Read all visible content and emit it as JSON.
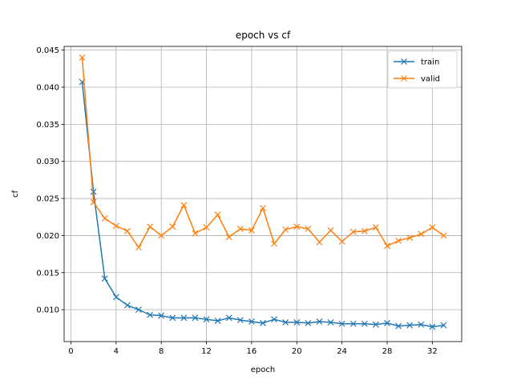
{
  "chart_data": {
    "type": "line",
    "title": "epoch vs cf",
    "xlabel": "epoch",
    "ylabel": "cf",
    "xlim": [
      -0.6,
      34.6
    ],
    "ylim": [
      0.0057,
      0.0455
    ],
    "xticks": [
      0,
      4,
      8,
      12,
      16,
      20,
      24,
      28,
      32
    ],
    "yticks": [
      0.01,
      0.015,
      0.02,
      0.025,
      0.03,
      0.035,
      0.04,
      0.045
    ],
    "grid": true,
    "legend_position": "top-right",
    "marker": "x",
    "x": [
      1,
      2,
      3,
      4,
      5,
      6,
      7,
      8,
      9,
      10,
      11,
      12,
      13,
      14,
      15,
      16,
      17,
      18,
      19,
      20,
      21,
      22,
      23,
      24,
      25,
      26,
      27,
      28,
      29,
      30,
      31,
      32,
      33
    ],
    "series": [
      {
        "name": "train",
        "color": "#1f77b4",
        "values": [
          0.0407,
          0.0259,
          0.0142,
          0.0117,
          0.0106,
          0.01,
          0.0093,
          0.0092,
          0.0089,
          0.0089,
          0.0089,
          0.0087,
          0.0085,
          0.0089,
          0.0086,
          0.0084,
          0.0082,
          0.0087,
          0.0083,
          0.0083,
          0.0082,
          0.0084,
          0.0083,
          0.0081,
          0.0081,
          0.0081,
          0.008,
          0.0082,
          0.0078,
          0.0079,
          0.008,
          0.0077,
          0.0079
        ]
      },
      {
        "name": "valid",
        "color": "#ff7f0e",
        "values": [
          0.044,
          0.0245,
          0.0223,
          0.0213,
          0.0206,
          0.0184,
          0.0212,
          0.02,
          0.0212,
          0.0241,
          0.0203,
          0.0211,
          0.0228,
          0.0198,
          0.0209,
          0.0207,
          0.0237,
          0.0189,
          0.0208,
          0.0212,
          0.0209,
          0.0191,
          0.0207,
          0.0192,
          0.0205,
          0.0206,
          0.0211,
          0.0186,
          0.0193,
          0.0197,
          0.0202,
          0.0211,
          0.02
        ]
      }
    ]
  }
}
